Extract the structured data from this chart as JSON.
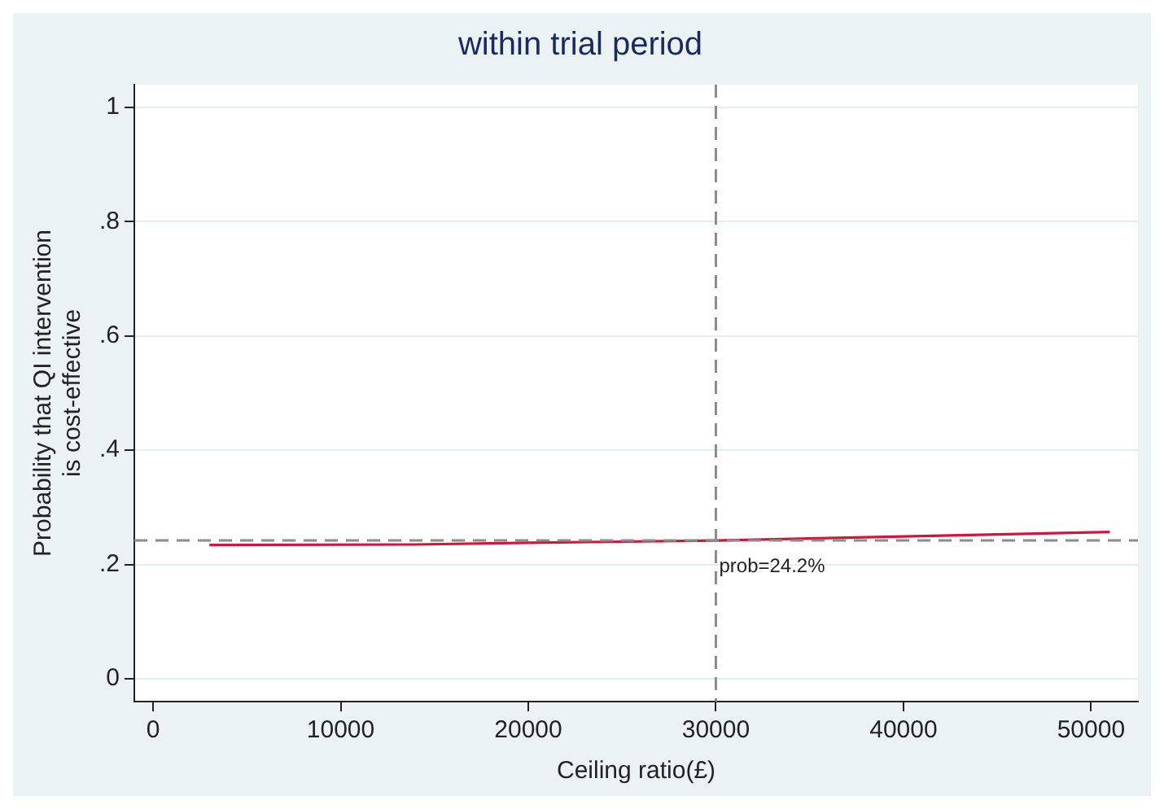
{
  "chart_data": {
    "type": "line",
    "title": "within trial period",
    "xlabel": "Ceiling ratio(£)",
    "ylabel": "Probability that QI intervention\nis cost-effective",
    "x": [
      3000,
      14000,
      20000,
      30000,
      40000,
      51000
    ],
    "series": [
      {
        "color": "#d0163c",
        "values": [
          0.234,
          0.235,
          0.238,
          0.242,
          0.249,
          0.257
        ]
      }
    ],
    "xlim": [
      -1000,
      52500
    ],
    "xticks": [
      0,
      10000,
      20000,
      30000,
      40000,
      50000
    ],
    "ylim": [
      -0.04,
      1.04
    ],
    "yticks": [
      {
        "value": 0,
        "label": "0"
      },
      {
        "value": 0.2,
        "label": ".2"
      },
      {
        "value": 0.4,
        "label": ".4"
      },
      {
        "value": 0.6,
        "label": ".6"
      },
      {
        "value": 0.8,
        "label": ".8"
      },
      {
        "value": 1,
        "label": "1"
      }
    ],
    "grid": "y",
    "legend": false,
    "marker": "none",
    "line_style": "solid",
    "ref_lines": [
      {
        "axis": "x",
        "value": 30000,
        "color": "#8c8c8c",
        "line_style": "dashed"
      },
      {
        "axis": "y",
        "value": 0.242,
        "color": "#8c8c8c",
        "line_style": "dashed",
        "label": "prob=24.2%"
      }
    ]
  }
}
